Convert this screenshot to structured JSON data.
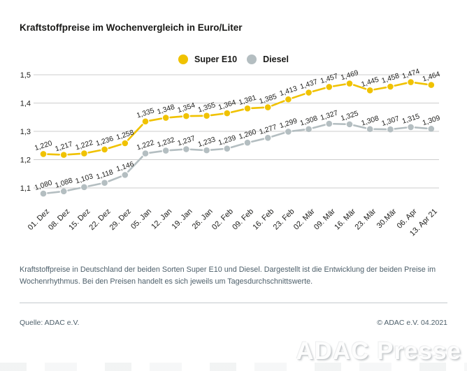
{
  "title": "Kraftstoffpreise im Wochenvergleich in Euro/Liter",
  "legend": [
    {
      "label": "Super E10",
      "color": "#f0c200"
    },
    {
      "label": "Diesel",
      "color": "#b4bec1"
    }
  ],
  "chart_data": {
    "type": "line",
    "title": "Kraftstoffpreise im Wochenvergleich in Euro/Liter",
    "xlabel": "",
    "ylabel": "Euro/Liter",
    "grid": "horizontal",
    "legend_position": "top-center",
    "y_ticks": [
      1.5,
      1.4,
      1.3,
      1.2,
      1.1
    ],
    "ylim": [
      1.05,
      1.5
    ],
    "value_label_format": "comma, 3 decimals",
    "categories": [
      "01. Dez",
      "08. Dez",
      "15. Dez",
      "22. Dez",
      "29. Dez",
      "05. Jan",
      "12. Jan",
      "19. Jan",
      "26. Jan",
      "02. Feb",
      "09. Feb",
      "16. Feb",
      "23. Feb",
      "02. Mär",
      "09. Mär",
      "16. Mär",
      "23. Mär",
      "30.Mär",
      "06. Apr",
      "13. Apr 21"
    ],
    "series": [
      {
        "name": "Super E10",
        "color": "#f0c200",
        "values": [
          1.22,
          1.217,
          1.222,
          1.236,
          1.258,
          1.335,
          1.348,
          1.354,
          1.355,
          1.364,
          1.381,
          1.385,
          1.413,
          1.437,
          1.457,
          1.469,
          1.445,
          1.458,
          1.474,
          1.464
        ]
      },
      {
        "name": "Diesel",
        "color": "#b4bec1",
        "values": [
          1.08,
          1.088,
          1.103,
          1.118,
          1.146,
          1.222,
          1.232,
          1.237,
          1.233,
          1.239,
          1.26,
          1.277,
          1.299,
          1.308,
          1.327,
          1.325,
          1.308,
          1.307,
          1.315,
          1.309
        ]
      }
    ]
  },
  "footnote": "Kraftstoffpreise in Deutschland der beiden Sorten Super E10 und Diesel. Dargestellt ist die Entwicklung der beiden Preise im Wochenrhythmus. Bei den Preisen handelt es sich jeweils um Tagesdurchschnittswerte.",
  "source": "Quelle: ADAC e.V.",
  "copyright": "© ADAC e.V. 04.2021",
  "watermark": "ADAC Presse"
}
